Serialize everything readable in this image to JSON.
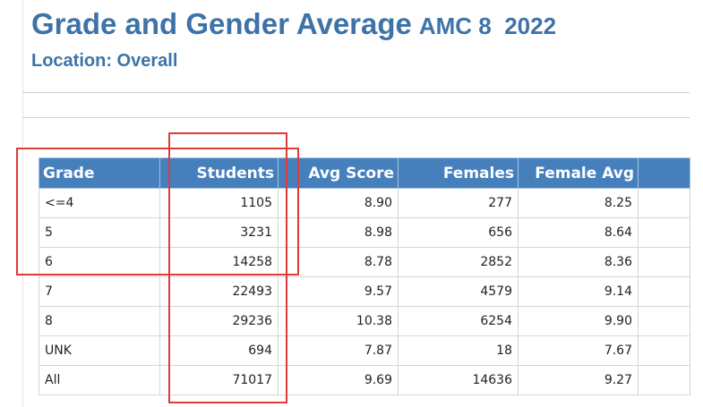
{
  "header": {
    "title": "Grade and Gender Average",
    "subtitle": "AMC 8  2022",
    "location": "Location: Overall"
  },
  "table": {
    "columns": [
      "Grade",
      "Students",
      "Avg Score",
      "Females",
      "Female Avg"
    ],
    "rows": [
      [
        "<=4",
        "1105",
        "8.90",
        "277",
        "8.25"
      ],
      [
        "5",
        "3231",
        "8.98",
        "656",
        "8.64"
      ],
      [
        "6",
        "14258",
        "8.78",
        "2852",
        "8.36"
      ],
      [
        "7",
        "22493",
        "9.57",
        "4579",
        "9.14"
      ],
      [
        "8",
        "29236",
        "10.38",
        "6254",
        "9.90"
      ],
      [
        "UNK",
        "694",
        "7.87",
        "18",
        "7.67"
      ],
      [
        "All",
        "71017",
        "9.69",
        "14636",
        "9.27"
      ]
    ]
  }
}
